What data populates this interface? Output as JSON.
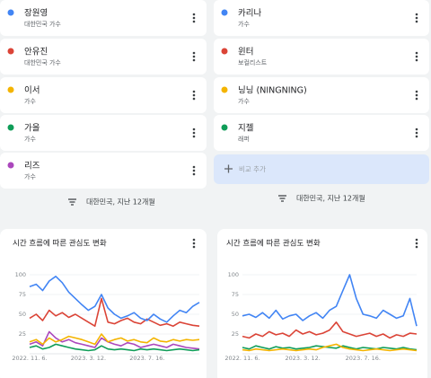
{
  "panels": [
    {
      "subtitles": [
        "대한민국 가수",
        "대한민국 가수",
        "가수",
        "가수",
        "가수"
      ],
      "filter": "대한민국, 지난 12개월"
    },
    {
      "subtitles": [
        "가수",
        "보컬리스트",
        "가수",
        "래퍼"
      ],
      "filter": "대한민국, 지난 12개월",
      "add_button": "비교 추가"
    }
  ],
  "chart_data": [
    {
      "type": "line",
      "title": "시간 흐름에 따른 관심도 변화",
      "categories": [
        "2022. 11. 6.",
        null,
        null,
        null,
        null,
        null,
        null,
        null,
        null,
        "2023. 3. 12.",
        null,
        null,
        null,
        null,
        null,
        null,
        null,
        null,
        "2023. 7. 16.",
        null,
        null,
        null,
        null,
        null,
        null,
        null,
        null
      ],
      "series": [
        {
          "name": "장원영",
          "color": "#4285f4",
          "values": [
            85,
            88,
            80,
            92,
            98,
            90,
            78,
            70,
            62,
            55,
            60,
            75,
            58,
            50,
            45,
            48,
            52,
            45,
            42,
            50,
            44,
            40,
            48,
            55,
            52,
            60,
            65
          ]
        },
        {
          "name": "안유진",
          "color": "#db4437",
          "values": [
            45,
            50,
            42,
            55,
            48,
            52,
            46,
            50,
            45,
            40,
            35,
            70,
            40,
            38,
            42,
            45,
            40,
            38,
            44,
            40,
            36,
            38,
            35,
            40,
            38,
            36,
            35
          ]
        },
        {
          "name": "이서",
          "color": "#f4b400",
          "values": [
            15,
            18,
            12,
            20,
            15,
            18,
            22,
            20,
            18,
            15,
            12,
            25,
            15,
            18,
            20,
            16,
            18,
            15,
            14,
            20,
            16,
            15,
            18,
            16,
            18,
            17,
            18
          ]
        },
        {
          "name": "가을",
          "color": "#0f9d58",
          "values": [
            8,
            10,
            6,
            8,
            12,
            10,
            8,
            6,
            5,
            4,
            5,
            10,
            6,
            5,
            6,
            5,
            4,
            6,
            5,
            6,
            5,
            4,
            5,
            6,
            5,
            4,
            5
          ]
        },
        {
          "name": "리즈",
          "color": "#ab47bc",
          "values": [
            12,
            15,
            10,
            28,
            20,
            15,
            18,
            14,
            12,
            10,
            8,
            20,
            15,
            12,
            10,
            14,
            12,
            8,
            10,
            12,
            10,
            8,
            12,
            10,
            8,
            7,
            6
          ]
        }
      ],
      "ylim": [
        0,
        100
      ],
      "yticks": [
        25,
        50,
        75,
        100
      ],
      "grid": true
    },
    {
      "type": "line",
      "title": "시간 흐름에 따른 관심도 변화",
      "categories": [
        "2022. 11. 6.",
        null,
        null,
        null,
        null,
        null,
        null,
        null,
        null,
        "2023. 3. 12.",
        null,
        null,
        null,
        null,
        null,
        null,
        null,
        null,
        "2023. 7. 16.",
        null,
        null,
        null,
        null,
        null,
        null,
        null,
        null
      ],
      "series": [
        {
          "name": "카리나",
          "color": "#4285f4",
          "values": [
            48,
            50,
            46,
            52,
            45,
            55,
            44,
            48,
            50,
            42,
            48,
            52,
            45,
            55,
            60,
            80,
            100,
            70,
            50,
            48,
            45,
            55,
            50,
            45,
            48,
            70,
            35
          ]
        },
        {
          "name": "윈터",
          "color": "#db4437",
          "values": [
            22,
            20,
            25,
            22,
            28,
            24,
            26,
            22,
            30,
            25,
            28,
            24,
            26,
            30,
            40,
            28,
            25,
            22,
            24,
            26,
            22,
            25,
            20,
            24,
            22,
            26,
            25
          ]
        },
        {
          "name": "닝닝 (NINGNING)",
          "color": "#f4b400",
          "values": [
            5,
            4,
            6,
            5,
            4,
            5,
            6,
            5,
            4,
            5,
            6,
            5,
            8,
            10,
            12,
            8,
            6,
            5,
            4,
            5,
            6,
            5,
            4,
            5,
            6,
            5,
            4
          ]
        },
        {
          "name": "지젤",
          "color": "#0f9d58",
          "values": [
            8,
            6,
            10,
            8,
            6,
            9,
            7,
            8,
            6,
            7,
            8,
            10,
            9,
            8,
            7,
            10,
            8,
            6,
            8,
            7,
            6,
            8,
            7,
            6,
            8,
            6,
            5
          ]
        }
      ],
      "ylim": [
        0,
        100
      ],
      "yticks": [
        25,
        50,
        75,
        100
      ],
      "grid": true
    }
  ]
}
